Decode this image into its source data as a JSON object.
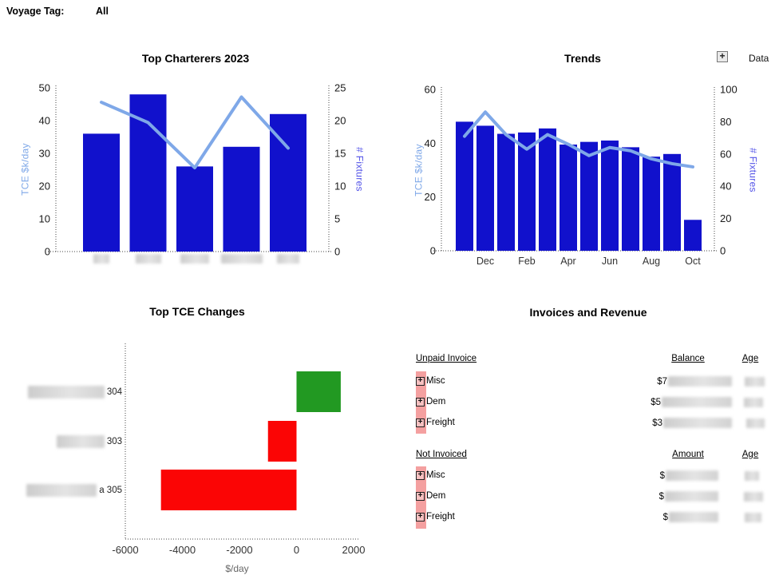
{
  "header": {
    "label": "Voyage Tag:",
    "value": "All"
  },
  "chart_data": [
    {
      "id": "top-charterers",
      "type": "bar+line",
      "title": "Top Charterers 2023",
      "y_left": {
        "label": "TCE $k/day",
        "min": 0,
        "max": 50,
        "ticks": [
          0,
          10,
          20,
          30,
          40,
          50
        ]
      },
      "y_right": {
        "label": "# Fixtures",
        "min": 0,
        "max": 25,
        "ticks": [
          0,
          5,
          10,
          15,
          20,
          25
        ]
      },
      "bars": {
        "series": "TCE $k/day",
        "color": "#1111CC",
        "values": [
          36,
          48,
          26,
          32,
          42
        ]
      },
      "line": {
        "series": "# Fixtures",
        "color": "#7FA8E8",
        "values": [
          22.8,
          19.7,
          12.8,
          23.6,
          15.8
        ]
      },
      "x_labels_redacted": true,
      "x_labels_redacted_widths": [
        20,
        32,
        36,
        52,
        28
      ],
      "grid": false,
      "legend": "none"
    },
    {
      "id": "trends",
      "type": "bar+line",
      "title": "Trends",
      "toolbar": {
        "data_label": "Data",
        "expand_icon": "plus-box"
      },
      "y_left": {
        "label": "TCE $k/day",
        "min": 0,
        "max": 60,
        "ticks": [
          0,
          20,
          40,
          60
        ]
      },
      "y_right": {
        "label": "# Fixtures",
        "min": 0,
        "max": 100,
        "ticks": [
          0,
          20,
          40,
          60,
          80,
          100
        ]
      },
      "x_ticks": [
        "Dec",
        "Feb",
        "Apr",
        "Jun",
        "Aug",
        "Oct"
      ],
      "bars": {
        "series": "TCE $k/day",
        "color": "#1111CC",
        "values": [
          48,
          46.5,
          43.5,
          44,
          45.5,
          39.5,
          40.5,
          41,
          38.5,
          35,
          36,
          11.5
        ]
      },
      "line": {
        "series": "# Fixtures",
        "color": "#7FA8E8",
        "values": [
          71,
          86,
          72,
          63,
          72,
          66,
          59,
          64,
          62,
          57,
          54,
          52
        ]
      },
      "grid": false,
      "legend": "none"
    },
    {
      "id": "top-tce-changes",
      "type": "bar-horizontal",
      "title": "Top TCE Changes",
      "xlabel": "$/day",
      "xlim": [
        -6000,
        2000
      ],
      "x_ticks": [
        -6000,
        -4000,
        -2000,
        0,
        2000
      ],
      "rows": [
        {
          "label_redacted": true,
          "label_visible": "304",
          "value": 1550,
          "color": "#229922"
        },
        {
          "label_redacted": true,
          "label_visible": "303",
          "value": -1000,
          "color": "#FB0505"
        },
        {
          "label_redacted": true,
          "label_visible": "a 305",
          "value": -4750,
          "color": "#FB0505"
        }
      ],
      "grid": false,
      "legend": "none"
    }
  ],
  "invoices": {
    "title": "Invoices and Revenue",
    "sections": [
      {
        "heading": "Unpaid Invoice",
        "value_col": "Balance",
        "age_col": "Age",
        "rows": [
          {
            "label": "Misc",
            "value_prefix": "$7",
            "value_redacted": true,
            "age_redacted": true
          },
          {
            "label": "Dem",
            "value_prefix": "$5",
            "value_redacted": true,
            "age_redacted": true
          },
          {
            "label": "Freight",
            "value_prefix": "$3",
            "value_redacted": true,
            "age_redacted": true
          }
        ]
      },
      {
        "heading": "Not Invoiced",
        "value_col": "Amount",
        "age_col": "Age",
        "rows": [
          {
            "label": "Misc",
            "value_prefix": "$",
            "value_redacted": true,
            "age_redacted": true
          },
          {
            "label": "Dem",
            "value_prefix": "$",
            "value_redacted": true,
            "age_redacted": true
          },
          {
            "label": "Freight",
            "value_prefix": "$",
            "value_redacted": true,
            "age_redacted": true
          }
        ]
      }
    ]
  }
}
